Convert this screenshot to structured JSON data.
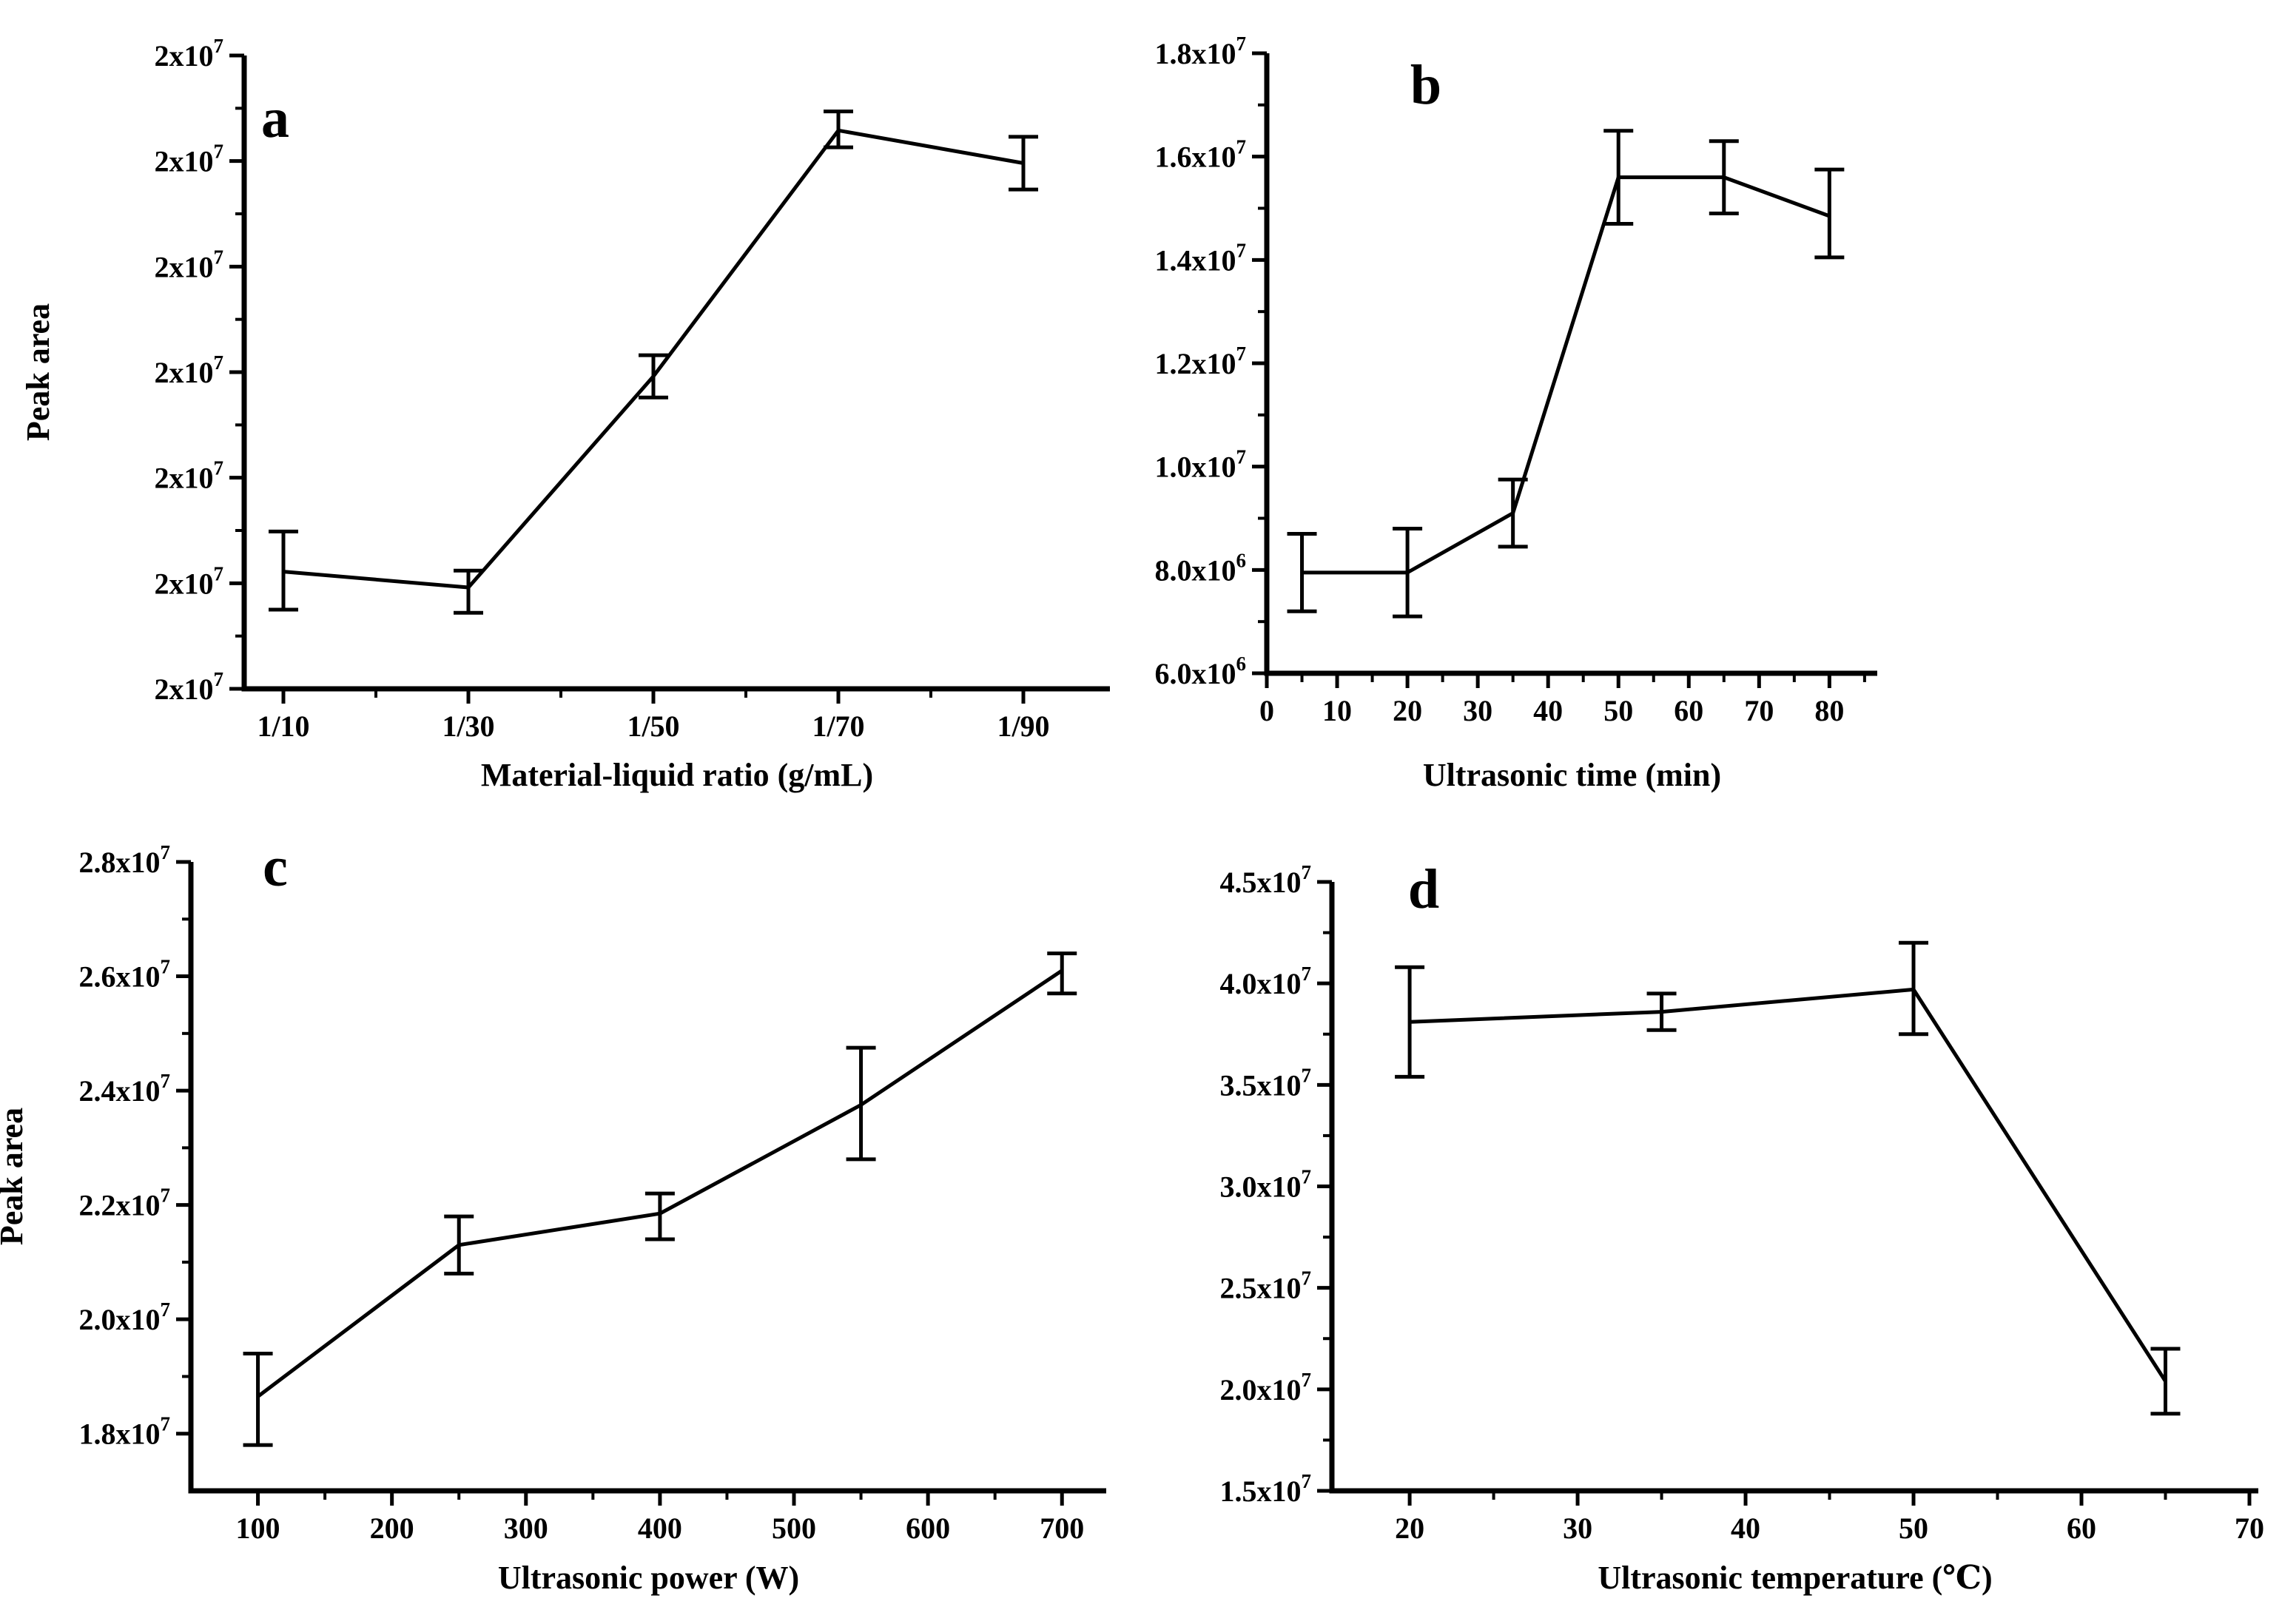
{
  "figure": {
    "background": "#ffffff",
    "ink": "#000000",
    "y_axis_title": "Peak area",
    "panel_letters": [
      "a",
      "b",
      "c",
      "d"
    ]
  },
  "chart_data": [
    {
      "id": "a",
      "type": "line",
      "panel_label": "a",
      "xlabel": "Material-liquid ratio (g/mL)",
      "ylabel": "Peak area",
      "categories": [
        "1/10",
        "1/30",
        "1/50",
        "1/70",
        "1/90"
      ],
      "y_axis_note": "all seven y-axis tick labels render as 2x10^7 in the source figure; series values below are in y-axis tick intervals measured up from the bottom axis",
      "x": [
        1,
        2,
        3,
        4,
        5
      ],
      "y": [
        1.11,
        0.96,
        2.96,
        5.29,
        4.98
      ],
      "err_up": [
        0.38,
        0.16,
        0.2,
        0.18,
        0.25
      ],
      "err_dn": [
        0.36,
        0.24,
        0.2,
        0.16,
        0.25
      ],
      "xlim": [
        0.788,
        5.468
      ],
      "ylim": [
        0,
        6
      ],
      "grid": false,
      "legend": null,
      "x_major": [
        {
          "v": 1,
          "t": "1/10"
        },
        {
          "v": 2,
          "t": "1/30"
        },
        {
          "v": 3,
          "t": "1/50"
        },
        {
          "v": 4,
          "t": "1/70"
        },
        {
          "v": 5,
          "t": "1/90"
        }
      ],
      "x_minor": [
        1.5,
        2.5,
        3.5,
        4.5
      ],
      "y_major": [
        {
          "v": 0,
          "t": "2x10^7"
        },
        {
          "v": 1,
          "t": "2x10^7"
        },
        {
          "v": 2,
          "t": "2x10^7"
        },
        {
          "v": 3,
          "t": "2x10^7"
        },
        {
          "v": 4,
          "t": "2x10^7"
        },
        {
          "v": 5,
          "t": "2x10^7"
        },
        {
          "v": 6,
          "t": "2x10^7"
        }
      ],
      "y_minor": [
        0.5,
        1.5,
        2.5,
        3.5,
        4.5,
        5.5
      ]
    },
    {
      "id": "b",
      "type": "line",
      "panel_label": "b",
      "xlabel": "Ultrasonic time (min)",
      "ylabel": null,
      "x": [
        5,
        20,
        35,
        50,
        65,
        80
      ],
      "y": [
        7950000,
        7950000,
        9100000,
        15600000,
        15600000,
        14850000
      ],
      "err_up": [
        750000,
        850000,
        650000,
        900000,
        700000,
        900000
      ],
      "err_dn": [
        750000,
        850000,
        650000,
        900000,
        700000,
        800000
      ],
      "xlim": [
        0,
        86.8
      ],
      "ylim": [
        6000000,
        18000000
      ],
      "grid": false,
      "legend": null,
      "x_major": [
        {
          "v": 0,
          "t": "0"
        },
        {
          "v": 10,
          "t": "10"
        },
        {
          "v": 20,
          "t": "20"
        },
        {
          "v": 30,
          "t": "30"
        },
        {
          "v": 40,
          "t": "40"
        },
        {
          "v": 50,
          "t": "50"
        },
        {
          "v": 60,
          "t": "60"
        },
        {
          "v": 70,
          "t": "70"
        },
        {
          "v": 80,
          "t": "80"
        }
      ],
      "x_minor": [
        5,
        15,
        25,
        35,
        45,
        55,
        65,
        75,
        85
      ],
      "y_major": [
        {
          "v": 6000000,
          "t": "6.0x10^6"
        },
        {
          "v": 8000000,
          "t": "8.0x10^6"
        },
        {
          "v": 10000000,
          "t": "1.0x10^7"
        },
        {
          "v": 12000000,
          "t": "1.2x10^7"
        },
        {
          "v": 14000000,
          "t": "1.4x10^7"
        },
        {
          "v": 16000000,
          "t": "1.6x10^7"
        },
        {
          "v": 18000000,
          "t": "1.8x10^7"
        }
      ],
      "y_minor": [
        7000000,
        9000000,
        11000000,
        13000000,
        15000000,
        17000000
      ]
    },
    {
      "id": "c",
      "type": "line",
      "panel_label": "c",
      "xlabel": "Ultrasonic power (W)",
      "ylabel": "Peak area",
      "x": [
        100,
        250,
        400,
        550,
        700
      ],
      "y": [
        18650000,
        21300000,
        21850000,
        23750000,
        26100000
      ],
      "err_up": [
        750000,
        500000,
        350000,
        1000000,
        300000
      ],
      "err_dn": [
        850000,
        500000,
        450000,
        950000,
        400000
      ],
      "xlim": [
        50,
        733
      ],
      "ylim": [
        17000000,
        28000000
      ],
      "grid": false,
      "legend": null,
      "x_major": [
        {
          "v": 100,
          "t": "100"
        },
        {
          "v": 200,
          "t": "200"
        },
        {
          "v": 300,
          "t": "300"
        },
        {
          "v": 400,
          "t": "400"
        },
        {
          "v": 500,
          "t": "500"
        },
        {
          "v": 600,
          "t": "600"
        },
        {
          "v": 700,
          "t": "700"
        }
      ],
      "x_minor": [
        150,
        250,
        350,
        450,
        550,
        650
      ],
      "y_major": [
        {
          "v": 18000000,
          "t": "1.8x10^7"
        },
        {
          "v": 20000000,
          "t": "2.0x10^7"
        },
        {
          "v": 22000000,
          "t": "2.2x10^7"
        },
        {
          "v": 24000000,
          "t": "2.4x10^7"
        },
        {
          "v": 26000000,
          "t": "2.6x10^7"
        },
        {
          "v": 28000000,
          "t": "2.8x10^7"
        }
      ],
      "y_minor": [
        19000000,
        21000000,
        23000000,
        25000000,
        27000000
      ]
    },
    {
      "id": "d",
      "type": "line",
      "panel_label": "d",
      "xlabel": "Ultrasonic temperature (℃)",
      "ylabel": null,
      "x": [
        20,
        35,
        50,
        65
      ],
      "y": [
        38100000,
        38600000,
        39700000,
        20400000
      ],
      "err_up": [
        2700000,
        900000,
        2300000,
        1600000
      ],
      "err_dn": [
        2700000,
        900000,
        2200000,
        1600000
      ],
      "xlim": [
        15.37,
        70.53
      ],
      "ylim": [
        15000000,
        45000000
      ],
      "grid": false,
      "legend": null,
      "x_major": [
        {
          "v": 20,
          "t": "20"
        },
        {
          "v": 30,
          "t": "30"
        },
        {
          "v": 40,
          "t": "40"
        },
        {
          "v": 50,
          "t": "50"
        },
        {
          "v": 60,
          "t": "60"
        },
        {
          "v": 70,
          "t": "70"
        }
      ],
      "x_minor": [
        25,
        35,
        45,
        55,
        65
      ],
      "y_major": [
        {
          "v": 15000000,
          "t": "1.5x10^7"
        },
        {
          "v": 20000000,
          "t": "2.0x10^7"
        },
        {
          "v": 25000000,
          "t": "2.5x10^7"
        },
        {
          "v": 30000000,
          "t": "3.0x10^7"
        },
        {
          "v": 35000000,
          "t": "3.5x10^7"
        },
        {
          "v": 40000000,
          "t": "4.0x10^7"
        },
        {
          "v": 45000000,
          "t": "4.5x10^7"
        }
      ],
      "y_minor": [
        17500000,
        22500000,
        27500000,
        32500000,
        37500000,
        42500000
      ]
    }
  ]
}
